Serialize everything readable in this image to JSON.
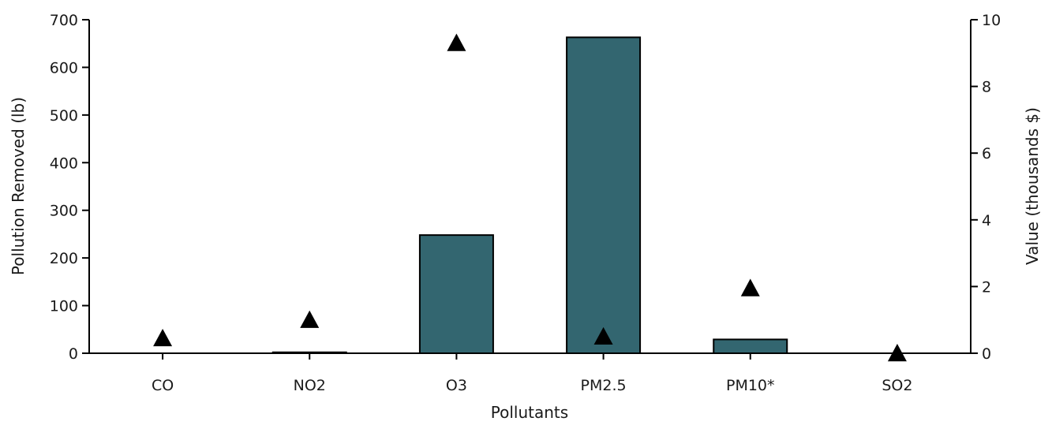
{
  "chart_data": {
    "type": "bar",
    "xlabel": "Pollutants",
    "ylabel": "Pollution Removed (lb)",
    "y2label": "Value (thousands $)",
    "categories": [
      "CO",
      "NO2",
      "O3",
      "PM2.5",
      "PM10*",
      "SO2"
    ],
    "series": [
      {
        "type": "bar",
        "axis": "left",
        "color": "#336670",
        "values": [
          0,
          2,
          248,
          663,
          29,
          0
        ]
      },
      {
        "type": "scatter",
        "axis": "right",
        "marker": "triangle",
        "color": "#000000",
        "values": [
          0.45,
          1.0,
          9.3,
          0.5,
          1.95,
          0.0
        ]
      }
    ],
    "ylim": [
      0,
      700
    ],
    "y_ticks": [
      0,
      100,
      200,
      300,
      400,
      500,
      600,
      700
    ],
    "y2lim": [
      0,
      10
    ],
    "y2_ticks": [
      0,
      2,
      4,
      6,
      8,
      10
    ],
    "grid": false,
    "legend": "none"
  }
}
